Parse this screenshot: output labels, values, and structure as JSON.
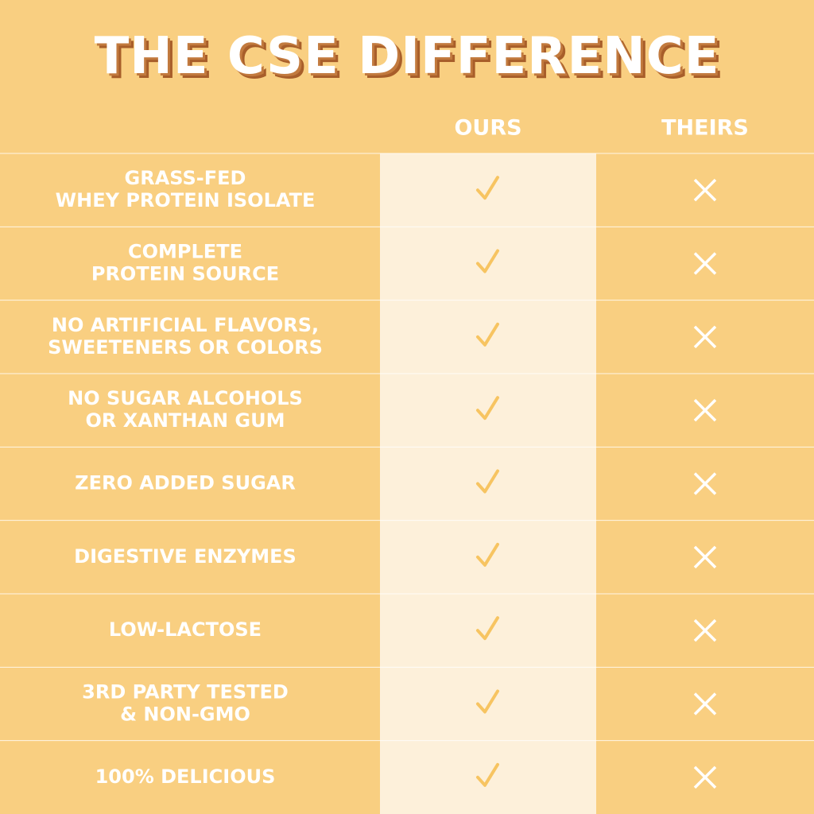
{
  "title": "THE CSE DIFFERENCE",
  "table": {
    "columns": [
      "OURS",
      "THEIRS"
    ],
    "rows": [
      {
        "feature": [
          "GRASS-FED",
          "WHEY PROTEIN ISOLATE"
        ]
      },
      {
        "feature": [
          "COMPLETE",
          "PROTEIN SOURCE"
        ]
      },
      {
        "feature": [
          "NO ARTIFICIAL FLAVORS,",
          "SWEETENERS OR COLORS"
        ]
      },
      {
        "feature": [
          "NO SUGAR ALCOHOLS",
          "OR XANTHAN GUM"
        ]
      },
      {
        "feature": [
          "ZERO ADDED SUGAR"
        ]
      },
      {
        "feature": [
          "DIGESTIVE ENZYMES"
        ]
      },
      {
        "feature": [
          "LOW-LACTOSE"
        ]
      },
      {
        "feature": [
          "3RD PARTY TESTED",
          "& NON-GMO"
        ]
      },
      {
        "feature": [
          "100% DELICIOUS"
        ]
      }
    ]
  }
}
